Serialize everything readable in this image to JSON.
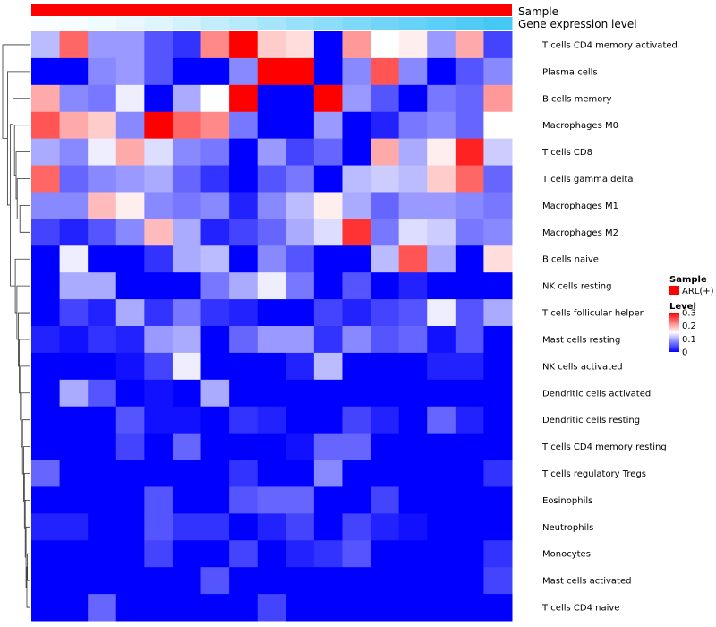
{
  "chart_data": {
    "type": "heatmap",
    "annotations": {
      "sample_label": "Sample",
      "gene_label": "Gene expression level",
      "sample_color": "#ff0000",
      "gene_values": [
        0.02,
        0.05,
        0.08,
        0.12,
        0.18,
        0.25,
        0.32,
        0.4,
        0.48,
        0.55,
        0.62,
        0.7,
        0.76,
        0.82,
        0.88,
        0.94,
        1.0
      ]
    },
    "rows": [
      "T cells CD4 memory activated",
      "Plasma cells",
      "B cells memory",
      "Macrophages M0",
      "T cells CD8",
      "T cells gamma delta",
      "Macrophages M1",
      "Macrophages M2",
      "B cells naive",
      "NK cells resting",
      "T cells follicular helper",
      "Mast cells resting",
      "NK cells activated",
      "Dendritic cells activated",
      "Dendritic cells resting",
      "T cells CD4 memory resting",
      "T cells regulatory  Tregs",
      "Eosinophils",
      "Neutrophils",
      "Monocytes",
      "Mast cells activated",
      "T cells CD4 naive"
    ],
    "values": [
      [
        0.11,
        0.24,
        0.09,
        0.09,
        0.05,
        0.03,
        0.22,
        0.3,
        0.18,
        0.17,
        0.0,
        0.21,
        0.15,
        0.16,
        0.09,
        0.2,
        0.04
      ],
      [
        0.0,
        0.0,
        0.08,
        0.09,
        0.05,
        0.0,
        0.0,
        0.08,
        0.3,
        0.3,
        0.0,
        0.08,
        0.25,
        0.08,
        0.0,
        0.05,
        0.08
      ],
      [
        0.2,
        0.08,
        0.07,
        0.14,
        0.0,
        0.1,
        0.15,
        0.3,
        0.0,
        0.0,
        0.3,
        0.09,
        0.05,
        0.0,
        0.07,
        0.06,
        0.21
      ],
      [
        0.25,
        0.2,
        0.18,
        0.08,
        0.3,
        0.24,
        0.22,
        0.07,
        0.0,
        0.0,
        0.09,
        0.0,
        0.02,
        0.07,
        0.08,
        0.06,
        0.15
      ],
      [
        0.1,
        0.08,
        0.14,
        0.2,
        0.13,
        0.08,
        0.07,
        0.0,
        0.09,
        0.04,
        0.06,
        0.0,
        0.2,
        0.1,
        0.16,
        0.28,
        0.12
      ],
      [
        0.24,
        0.06,
        0.08,
        0.09,
        0.1,
        0.06,
        0.03,
        0.0,
        0.05,
        0.07,
        0.0,
        0.11,
        0.12,
        0.11,
        0.18,
        0.24,
        0.06
      ],
      [
        0.08,
        0.08,
        0.19,
        0.16,
        0.08,
        0.07,
        0.08,
        0.02,
        0.08,
        0.11,
        0.16,
        0.1,
        0.06,
        0.09,
        0.09,
        0.08,
        0.07
      ],
      [
        0.04,
        0.02,
        0.05,
        0.08,
        0.19,
        0.1,
        0.02,
        0.04,
        0.06,
        0.1,
        0.13,
        0.27,
        0.07,
        0.13,
        0.12,
        0.07,
        0.08
      ],
      [
        0.0,
        0.14,
        0.0,
        0.0,
        0.03,
        0.1,
        0.11,
        0.0,
        0.08,
        0.05,
        0.0,
        0.0,
        0.11,
        0.25,
        0.1,
        0.0,
        0.17
      ],
      [
        0.0,
        0.1,
        0.1,
        0.0,
        0.0,
        0.0,
        0.07,
        0.1,
        0.14,
        0.07,
        0.0,
        0.05,
        0.0,
        0.02,
        0.0,
        0.0,
        0.0
      ],
      [
        0.0,
        0.04,
        0.02,
        0.1,
        0.03,
        0.07,
        0.03,
        0.02,
        0.0,
        0.0,
        0.04,
        0.02,
        0.04,
        0.05,
        0.14,
        0.05,
        0.1
      ],
      [
        0.02,
        0.01,
        0.03,
        0.02,
        0.09,
        0.1,
        0.0,
        0.06,
        0.09,
        0.09,
        0.03,
        0.08,
        0.05,
        0.06,
        0.01,
        0.05,
        0.0
      ],
      [
        0.0,
        0.0,
        0.0,
        0.01,
        0.04,
        0.14,
        0.0,
        0.0,
        0.0,
        0.02,
        0.11,
        0.0,
        0.0,
        0.0,
        0.02,
        0.02,
        0.0
      ],
      [
        0.0,
        0.1,
        0.05,
        0.0,
        0.01,
        0.0,
        0.1,
        0.0,
        0.0,
        0.0,
        0.0,
        0.0,
        0.0,
        0.0,
        0.0,
        0.0,
        0.0
      ],
      [
        0.0,
        0.0,
        0.0,
        0.05,
        0.01,
        0.01,
        0.0,
        0.03,
        0.02,
        0.0,
        0.0,
        0.04,
        0.02,
        0.0,
        0.06,
        0.02,
        0.0
      ],
      [
        0.0,
        0.0,
        0.0,
        0.04,
        0.0,
        0.06,
        0.0,
        0.0,
        0.0,
        0.01,
        0.06,
        0.06,
        0.0,
        0.0,
        0.0,
        0.0,
        0.0
      ],
      [
        0.06,
        0.0,
        0.0,
        0.0,
        0.0,
        0.0,
        0.0,
        0.03,
        0.0,
        0.0,
        0.08,
        0.0,
        0.0,
        0.0,
        0.0,
        0.0,
        0.03
      ],
      [
        0.0,
        0.0,
        0.0,
        0.0,
        0.05,
        0.0,
        0.0,
        0.05,
        0.06,
        0.06,
        0.0,
        0.0,
        0.04,
        0.0,
        0.0,
        0.0,
        0.0
      ],
      [
        0.02,
        0.02,
        0.0,
        0.0,
        0.05,
        0.03,
        0.03,
        0.0,
        0.02,
        0.04,
        0.0,
        0.04,
        0.02,
        0.01,
        0.0,
        0.0,
        0.0
      ],
      [
        0.0,
        0.0,
        0.0,
        0.0,
        0.04,
        0.0,
        0.0,
        0.04,
        0.0,
        0.02,
        0.03,
        0.05,
        0.0,
        0.0,
        0.0,
        0.0,
        0.03
      ],
      [
        0.0,
        0.0,
        0.0,
        0.0,
        0.0,
        0.0,
        0.05,
        0.0,
        0.0,
        0.0,
        0.0,
        0.0,
        0.0,
        0.0,
        0.0,
        0.0,
        0.04
      ],
      [
        0.0,
        0.0,
        0.06,
        0.0,
        0.0,
        0.0,
        0.0,
        0.0,
        0.04,
        0.0,
        0.0,
        0.0,
        0.0,
        0.0,
        0.0,
        0.0,
        0.0
      ]
    ],
    "color_scale": {
      "low": "#0000ff",
      "mid": "#ffffff",
      "high": "#ff0000",
      "min": 0,
      "max": 0.3
    },
    "legend": {
      "sample_title": "Sample",
      "sample_entry": "ARL(+)",
      "sample_color": "#ff0000",
      "level_title": "Level",
      "level_ticks": [
        "0.3",
        "0.2",
        "0.1",
        "0"
      ],
      "level_tick_values": [
        0.3,
        0.2,
        0.1,
        0
      ]
    },
    "dendrogram": {
      "orientation": "row",
      "merges": [
        [
          -20,
          -21
        ],
        [
          -22,
          1
        ],
        [
          -19,
          2
        ],
        [
          -18,
          3
        ],
        [
          -17,
          4
        ],
        [
          -16,
          5
        ],
        [
          -15,
          6
        ],
        [
          -14,
          7
        ],
        [
          -13,
          8
        ],
        [
          -12,
          9
        ],
        [
          -11,
          10
        ],
        [
          -10,
          11
        ],
        [
          -9,
          12
        ],
        [
          -7,
          -8
        ],
        [
          -6,
          14
        ],
        [
          -5,
          15
        ],
        [
          -4,
          16
        ],
        [
          -3,
          17
        ],
        [
          13,
          18
        ],
        [
          -2,
          19
        ],
        [
          -1,
          20
        ]
      ],
      "heights": [
        0.08,
        0.1,
        0.13,
        0.16,
        0.19,
        0.22,
        0.26,
        0.3,
        0.34,
        0.38,
        0.42,
        0.47,
        0.53,
        0.36,
        0.46,
        0.5,
        0.56,
        0.62,
        0.72,
        0.82,
        1.0
      ]
    }
  }
}
